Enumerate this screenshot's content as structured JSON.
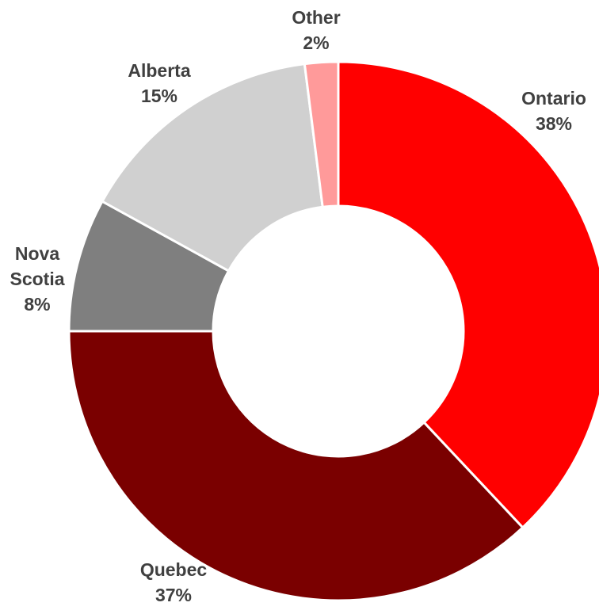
{
  "chart_data": {
    "type": "donut",
    "title": "",
    "slices": [
      {
        "label": "Ontario",
        "value": 38,
        "value_label": "38%",
        "color": "#ff0000"
      },
      {
        "label": "Quebec",
        "value": 37,
        "value_label": "37%",
        "color": "#7a0000"
      },
      {
        "label": "Nova Scotia",
        "value": 8,
        "value_label": "8%",
        "color": "#7f7f7f"
      },
      {
        "label": "Alberta",
        "value": 15,
        "value_label": "15%",
        "color": "#d0d0d0"
      },
      {
        "label": "Other",
        "value": 2,
        "value_label": "2%",
        "color": "#ff9a9a"
      }
    ],
    "start": "12 o'clock",
    "direction": "clockwise",
    "legend": "none",
    "data_labels": "outside, category and percentage"
  }
}
